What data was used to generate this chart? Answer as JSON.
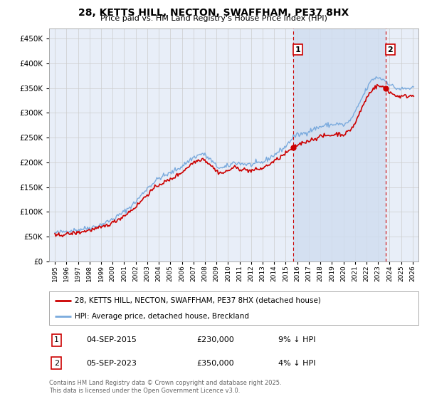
{
  "title": "28, KETTS HILL, NECTON, SWAFFHAM, PE37 8HX",
  "subtitle": "Price paid vs. HM Land Registry's House Price Index (HPI)",
  "yticks": [
    0,
    50000,
    100000,
    150000,
    200000,
    250000,
    300000,
    350000,
    400000,
    450000
  ],
  "ylim": [
    0,
    470000
  ],
  "xlim_start": 1994.5,
  "xlim_end": 2026.5,
  "sale1_date": 2015.67,
  "sale1_price": 230000,
  "sale2_date": 2023.67,
  "sale2_price": 350000,
  "annotation1_label": "1",
  "annotation2_label": "2",
  "legend_line1": "28, KETTS HILL, NECTON, SWAFFHAM, PE37 8HX (detached house)",
  "legend_line2": "HPI: Average price, detached house, Breckland",
  "footer": "Contains HM Land Registry data © Crown copyright and database right 2025.\nThis data is licensed under the Open Government Licence v3.0.",
  "line_color_house": "#cc0000",
  "line_color_hpi": "#7aaadd",
  "dashed_color": "#cc0000",
  "background_color": "#e8eef8",
  "shade_color": "#d0ddf0",
  "grid_color": "#cccccc",
  "annotation_box_color": "#cc0000"
}
